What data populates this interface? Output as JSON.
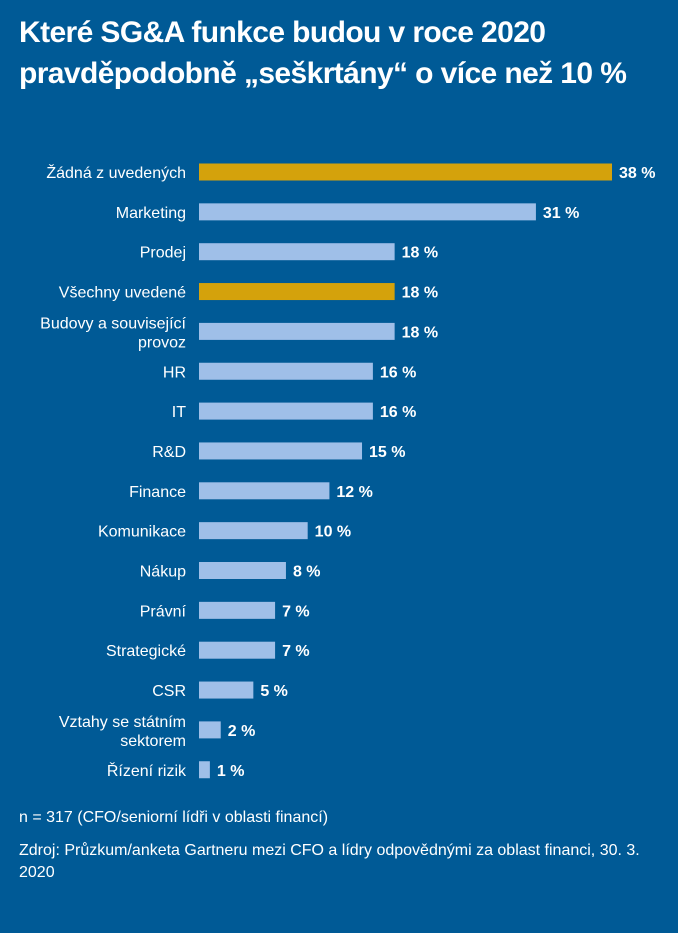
{
  "chart_data": {
    "type": "bar",
    "orientation": "horizontal",
    "title": "Které SG&A funkce budou v roce 2020 pravděpodobně „seškrtány“ o více než 10 %",
    "categories": [
      [
        "Žádná z uvedených"
      ],
      [
        "Marketing"
      ],
      [
        "Prodej"
      ],
      [
        "Všechny uvedené"
      ],
      [
        "Budovy a související",
        "provoz"
      ],
      [
        "HR"
      ],
      [
        "IT"
      ],
      [
        "R&D"
      ],
      [
        "Finance"
      ],
      [
        "Komunikace"
      ],
      [
        "Nákup"
      ],
      [
        "Právní"
      ],
      [
        "Strategické"
      ],
      [
        "CSR"
      ],
      [
        "Vztahy se státním",
        "sektorem"
      ],
      [
        "Řízení rizik"
      ]
    ],
    "values": [
      38,
      31,
      18,
      18,
      18,
      16,
      16,
      15,
      12,
      10,
      8,
      7,
      7,
      5,
      2,
      1
    ],
    "value_labels": [
      "38 %",
      "31 %",
      "18 %",
      "18 %",
      "18 %",
      "16 %",
      "16 %",
      "15 %",
      "12 %",
      "10 %",
      "8 %",
      "7 %",
      "7 %",
      "5 %",
      "2 %",
      "1 %"
    ],
    "highlighted": [
      true,
      false,
      false,
      true,
      false,
      false,
      false,
      false,
      false,
      false,
      false,
      false,
      false,
      false,
      false,
      false
    ],
    "xlabel": "",
    "ylabel": "",
    "xlim": [
      0,
      38
    ],
    "grid": false,
    "colors": {
      "default": "#9fbfe8",
      "highlight": "#d4a20c",
      "background": "#005a96"
    }
  },
  "footer": {
    "sample": "n = 317 (CFO/seniorní lídři v oblasti financí)",
    "source": "Zdroj: Průzkum/anketa Gartneru mezi CFO a lídry odpovědnými za oblast financi, 30. 3. 2020"
  }
}
